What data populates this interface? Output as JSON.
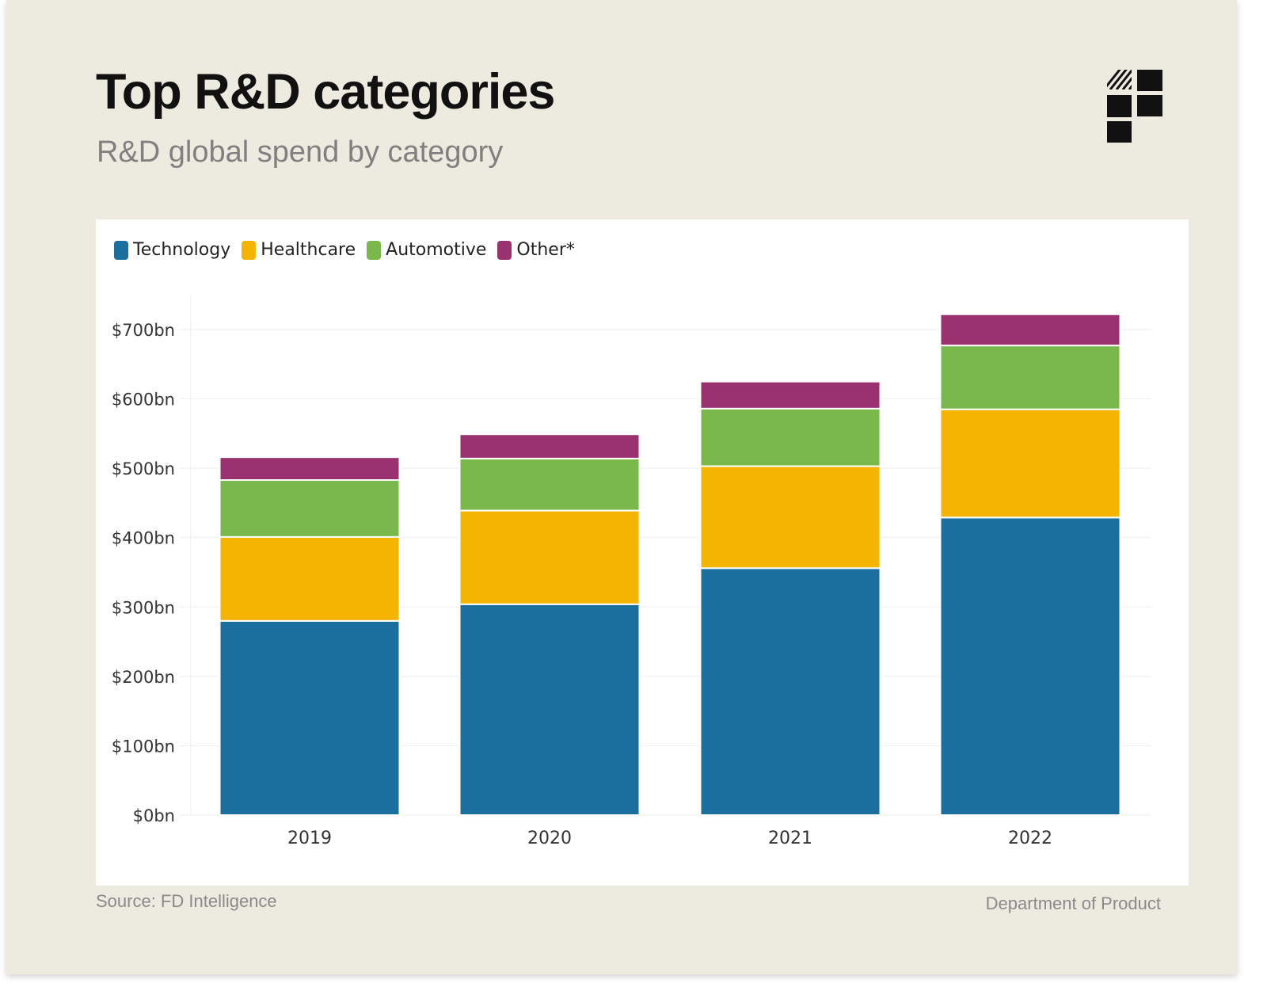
{
  "header": {
    "title": "Top R&D categories",
    "subtitle": "R&D global spend by category"
  },
  "logo": {
    "icon": "department-of-product-logo-icon"
  },
  "legend": [
    {
      "label": "Technology",
      "color": "#1a6f9e"
    },
    {
      "label": "Healthcare",
      "color": "#f5b400"
    },
    {
      "label": "Automotive",
      "color": "#7ab84c"
    },
    {
      "label": "Other*",
      "color": "#9b3270"
    }
  ],
  "chart_data": {
    "type": "bar",
    "stacked": true,
    "title": "R&D global spend by category",
    "xlabel": "",
    "ylabel": "",
    "categories": [
      "2019",
      "2020",
      "2021",
      "2022"
    ],
    "series": [
      {
        "name": "Technology",
        "color": "#1a6f9e",
        "values": [
          280,
          304,
          356,
          429
        ]
      },
      {
        "name": "Healthcare",
        "color": "#f5b400",
        "values": [
          121,
          135,
          147,
          156
        ]
      },
      {
        "name": "Automotive",
        "color": "#7ab84c",
        "values": [
          82,
          75,
          83,
          92
        ]
      },
      {
        "name": "Other*",
        "color": "#9b3270",
        "values": [
          33,
          35,
          39,
          45
        ]
      }
    ],
    "ylim": [
      0,
      750
    ],
    "yticks": [
      0,
      100,
      200,
      300,
      400,
      500,
      600,
      700
    ],
    "ytick_labels": [
      "$0bn",
      "$100bn",
      "$200bn",
      "$300bn",
      "$400bn",
      "$500bn",
      "$600bn",
      "$700bn"
    ],
    "grid": true,
    "legend_position": "top-left"
  },
  "footer": {
    "source": "Source: FD Intelligence",
    "credit": "Department of Product"
  }
}
